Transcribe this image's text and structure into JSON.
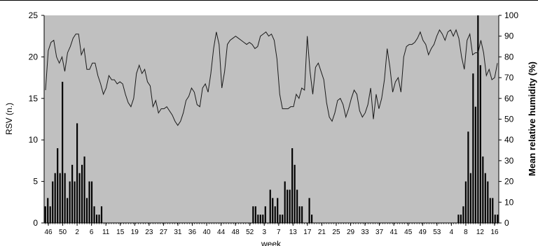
{
  "chart_data": {
    "type": "bar",
    "title": "",
    "xlabel": "week",
    "ylabel": "RSV (n.)",
    "ylabel_right": "Mean relative humidity (%)",
    "ylim": [
      0,
      25
    ],
    "ylim_right": [
      0,
      100
    ],
    "yticks": [
      0,
      5,
      10,
      15,
      20,
      25
    ],
    "yticks_right": [
      0,
      10,
      20,
      30,
      40,
      50,
      60,
      70,
      80,
      90,
      100
    ],
    "background_color": "#c0c0c0",
    "bar_color": "#000000",
    "line_color": "#1a1a1a",
    "grid": false,
    "legend": "none",
    "x_tick_labels": [
      "46",
      "50",
      "2",
      "6",
      "11",
      "15",
      "19",
      "23",
      "27",
      "31",
      "36",
      "40",
      "44",
      "48",
      "52",
      "3",
      "7",
      "13",
      "17",
      "21",
      "25",
      "29",
      "33",
      "37",
      "41",
      "45",
      "49",
      "53",
      "4",
      "8",
      "12",
      "16"
    ],
    "series": [
      {
        "type": "bar",
        "axis": "left",
        "values": [
          2,
          3,
          2,
          5,
          6,
          9,
          6,
          17,
          6,
          3,
          5,
          7,
          5,
          12,
          6,
          7,
          8,
          3,
          5,
          5,
          2,
          1,
          1,
          2,
          0,
          0,
          0,
          0,
          0,
          0,
          0,
          0,
          0,
          0,
          0,
          0,
          0,
          0,
          0,
          0,
          0,
          0,
          0,
          0,
          0,
          0,
          0,
          0,
          0,
          0,
          0,
          0,
          0,
          0,
          0,
          0,
          0,
          0,
          0,
          0,
          0,
          0,
          0,
          0,
          0,
          0,
          0,
          0,
          0,
          0,
          0,
          0,
          0,
          0,
          0,
          0,
          0,
          0,
          0,
          0,
          0,
          0,
          0,
          0,
          0,
          2,
          2,
          1,
          1,
          1,
          2,
          0,
          4,
          3,
          2,
          3,
          1,
          1,
          5,
          4,
          4,
          9,
          7,
          4,
          2,
          2,
          0,
          0,
          3,
          1,
          0,
          0,
          0,
          0,
          0,
          0,
          0,
          0,
          0,
          0,
          0,
          0,
          0,
          0,
          0,
          0,
          0,
          0,
          0,
          0,
          0,
          0,
          0,
          0,
          0,
          0,
          0,
          0,
          0,
          0,
          0,
          0,
          0,
          0,
          0,
          0,
          0,
          0,
          0,
          0,
          0,
          0,
          0,
          0,
          0,
          0,
          0,
          0,
          0,
          0,
          0,
          0,
          0,
          0,
          0,
          0,
          0,
          0,
          0,
          1,
          1,
          2,
          5,
          11,
          6,
          18,
          14,
          25,
          19,
          8,
          6,
          5,
          3,
          3,
          1,
          1
        ]
      },
      {
        "type": "line",
        "axis": "right",
        "values": [
          64,
          83,
          87,
          88,
          80,
          77,
          80,
          73,
          82,
          85,
          89,
          91,
          91,
          81,
          84,
          74,
          74,
          77,
          77,
          71,
          67,
          62,
          65,
          71,
          69,
          69,
          67,
          68,
          67,
          62,
          58,
          56,
          60,
          72,
          76,
          72,
          74,
          68,
          66,
          56,
          59,
          53,
          55,
          55,
          56,
          54,
          52,
          49,
          47,
          49,
          53,
          59,
          61,
          65,
          63,
          57,
          56,
          65,
          67,
          63,
          72,
          84,
          92,
          86,
          65,
          73,
          86,
          88,
          89,
          90,
          89,
          88,
          87,
          86,
          87,
          86,
          84,
          85,
          90,
          91,
          92,
          90,
          91,
          88,
          79,
          62,
          55,
          55,
          55,
          56,
          56,
          62,
          60,
          65,
          64,
          90,
          73,
          62,
          75,
          77,
          73,
          69,
          58,
          51,
          49,
          53,
          59,
          60,
          57,
          51,
          55,
          60,
          64,
          62,
          54,
          51,
          53,
          57,
          65,
          50,
          62,
          55,
          60,
          69,
          84,
          75,
          63,
          68,
          70,
          63,
          80,
          85,
          86,
          86,
          87,
          89,
          92,
          88,
          86,
          81,
          84,
          86,
          90,
          93,
          91,
          88,
          92,
          93,
          90,
          93,
          89,
          80,
          74,
          88,
          91,
          81,
          82,
          82,
          88,
          82,
          71,
          74,
          69,
          70,
          77
        ]
      }
    ]
  }
}
